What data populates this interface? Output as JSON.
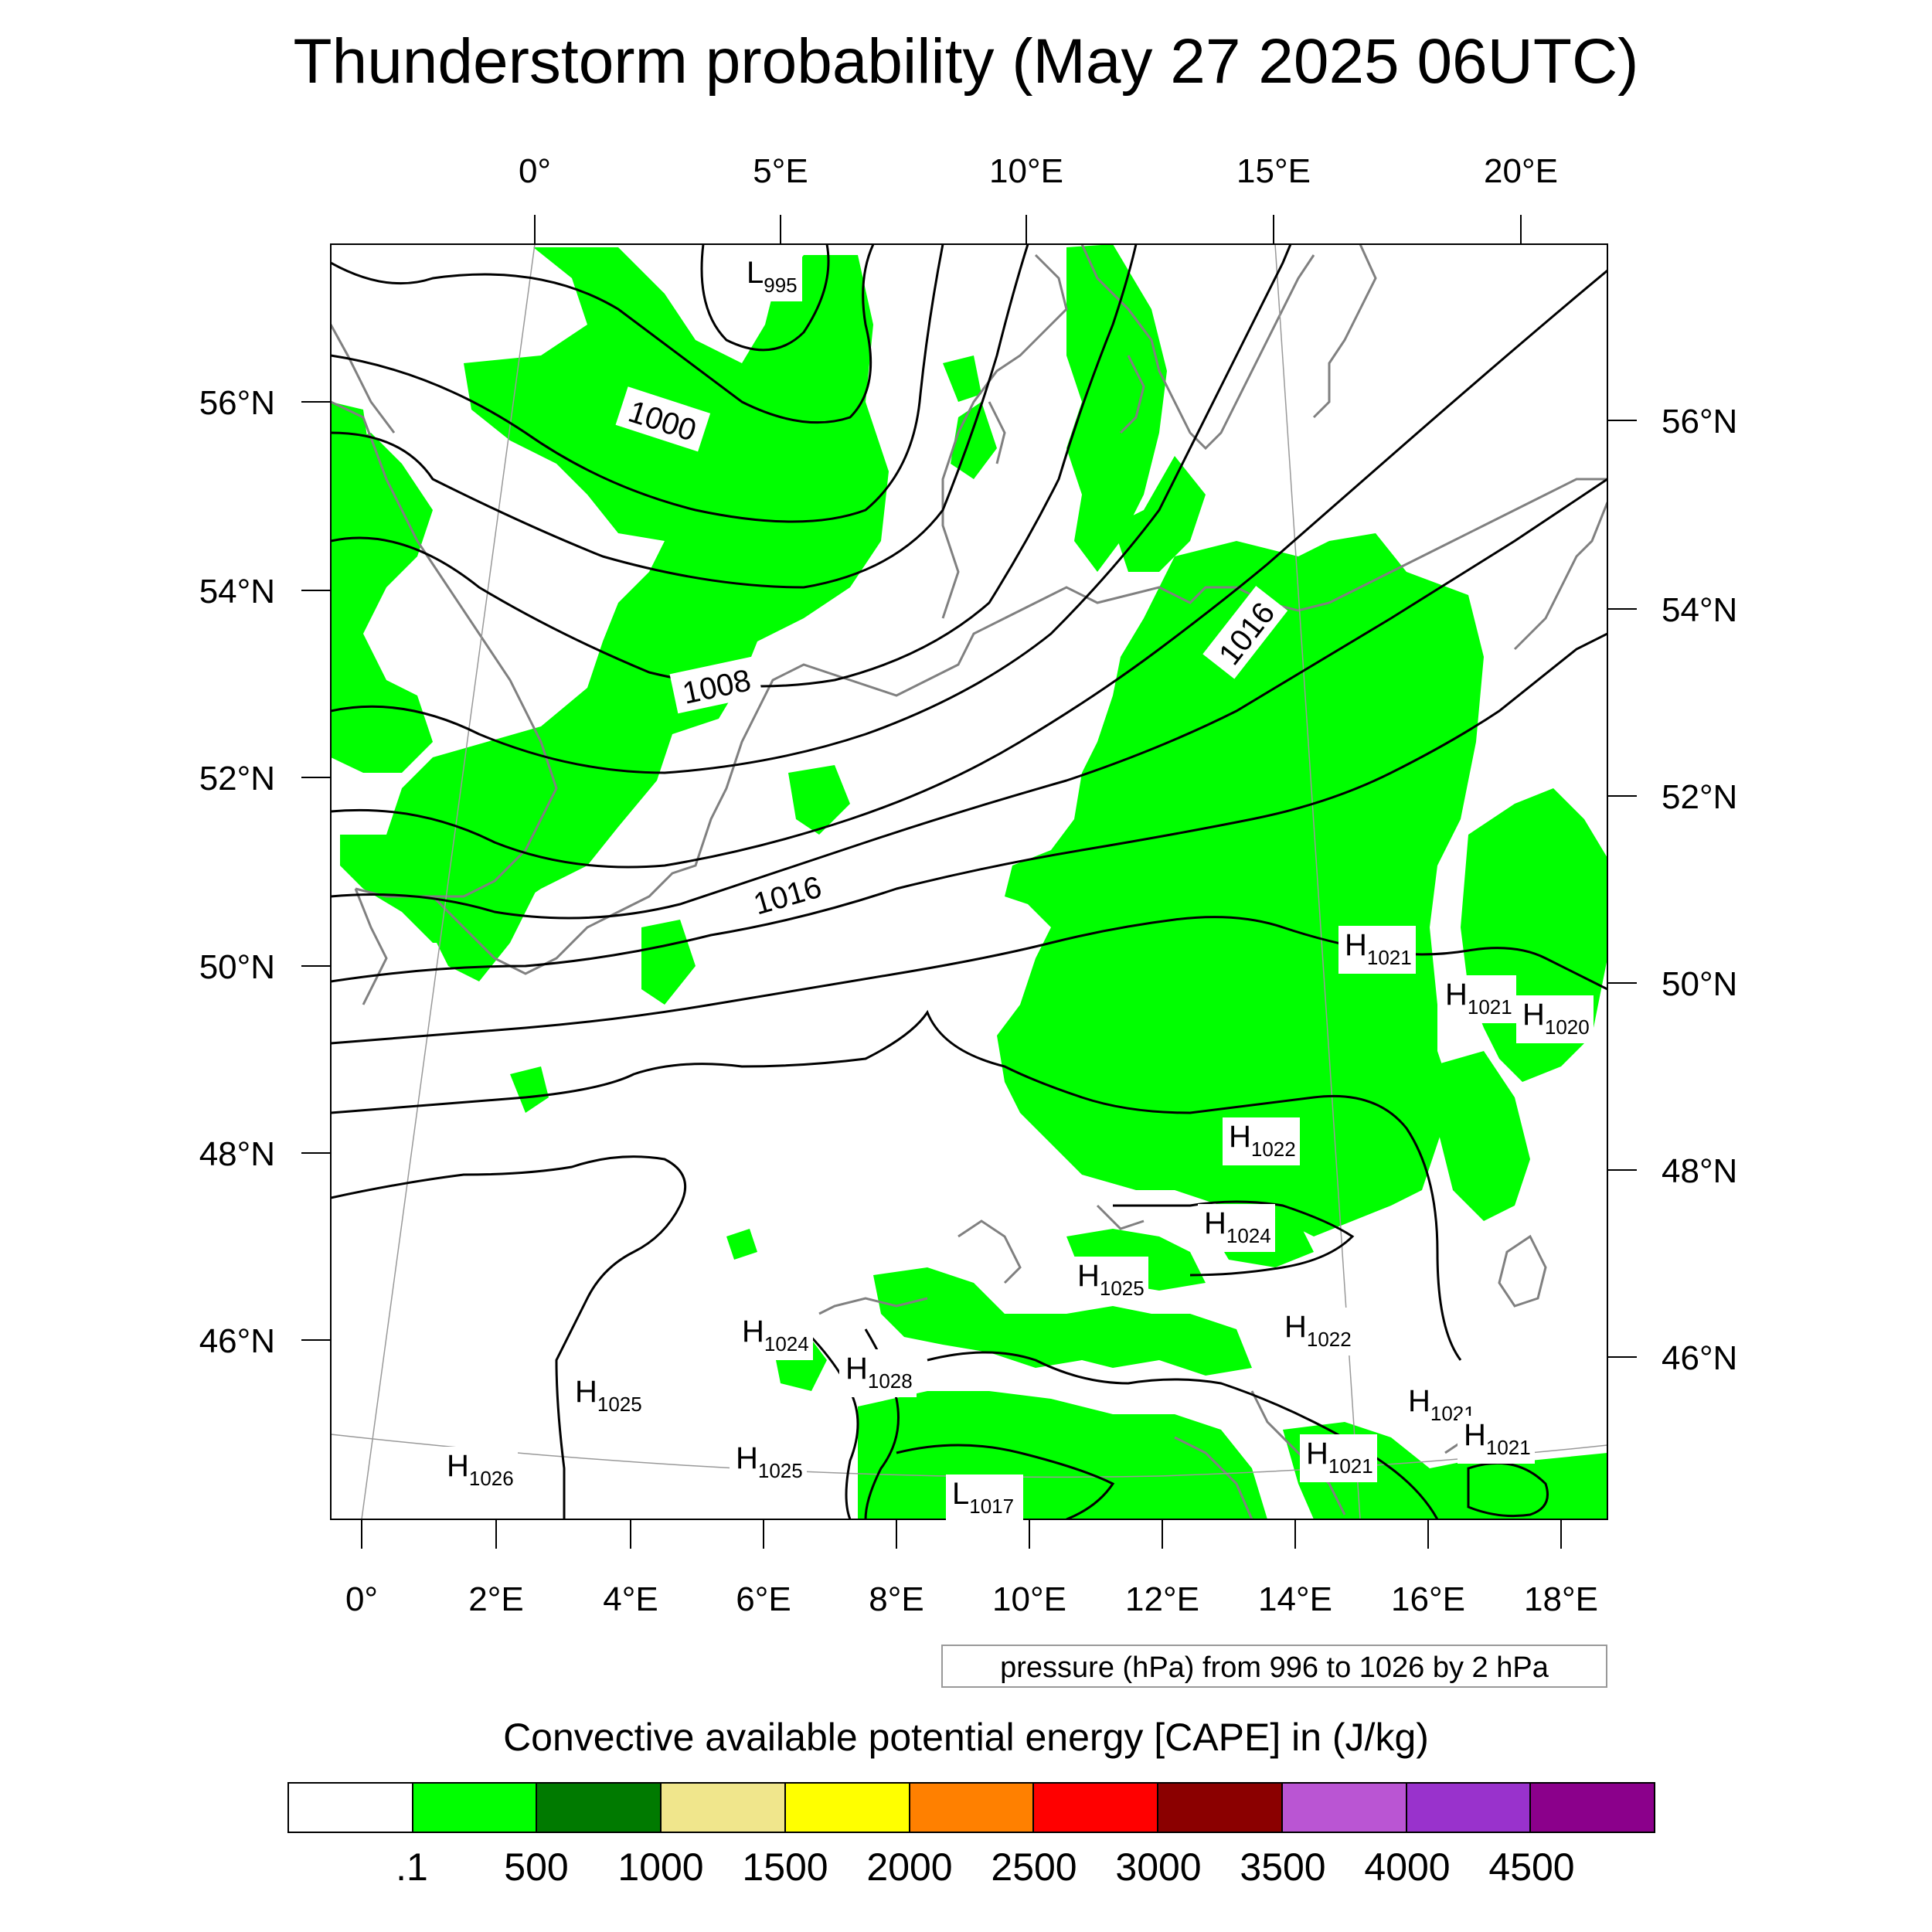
{
  "title": "Thunderstorm probability (May 27 2025 06UTC)",
  "map": {
    "top_lon_labels": [
      "0°",
      "5°E",
      "10°E",
      "15°E",
      "20°E"
    ],
    "bottom_lon_labels": [
      "0°",
      "2°E",
      "4°E",
      "6°E",
      "8°E",
      "10°E",
      "12°E",
      "14°E",
      "16°E",
      "18°E"
    ],
    "left_lat_labels": [
      "56°N",
      "54°N",
      "52°N",
      "50°N",
      "48°N",
      "46°N"
    ],
    "right_lat_labels": [
      "56°N",
      "54°N",
      "52°N",
      "50°N",
      "48°N",
      "46°N"
    ],
    "contour_labels": [
      "1000",
      "1008",
      "1016",
      "1016"
    ],
    "pressure_centers": [
      {
        "type": "L",
        "value": "995"
      },
      {
        "type": "H",
        "value": "1021"
      },
      {
        "type": "H",
        "value": "1021"
      },
      {
        "type": "H",
        "value": "1020"
      },
      {
        "type": "H",
        "value": "1022"
      },
      {
        "type": "H",
        "value": "1024"
      },
      {
        "type": "H",
        "value": "1025"
      },
      {
        "type": "H",
        "value": "1022"
      },
      {
        "type": "H",
        "value": "1024"
      },
      {
        "type": "H",
        "value": "1028"
      },
      {
        "type": "H",
        "value": "1025"
      },
      {
        "type": "H",
        "value": "1026"
      },
      {
        "type": "H",
        "value": "1025"
      },
      {
        "type": "L",
        "value": "1017"
      },
      {
        "type": "H",
        "value": "1021"
      },
      {
        "type": "H",
        "value": "1021"
      },
      {
        "type": "H",
        "value": "1021"
      }
    ],
    "cape_fill_color": "#00ff00",
    "isobar_color": "#000000",
    "coastline_color": "#808080"
  },
  "pressure_note": "pressure (hPa) from 996 to 1026 by 2 hPa",
  "colorbar": {
    "title": "Convective available potential energy [CAPE] in (J/kg)",
    "colors": [
      "#ffffff",
      "#00ff00",
      "#007a00",
      "#f0e68c",
      "#ffff00",
      "#ff8000",
      "#ff0000",
      "#8b0000",
      "#ba55d3",
      "#9932cc",
      "#8b008b"
    ],
    "tick_labels": [
      ".1",
      "500",
      "1000",
      "1500",
      "2000",
      "2500",
      "3000",
      "3500",
      "4000",
      "4500"
    ]
  }
}
